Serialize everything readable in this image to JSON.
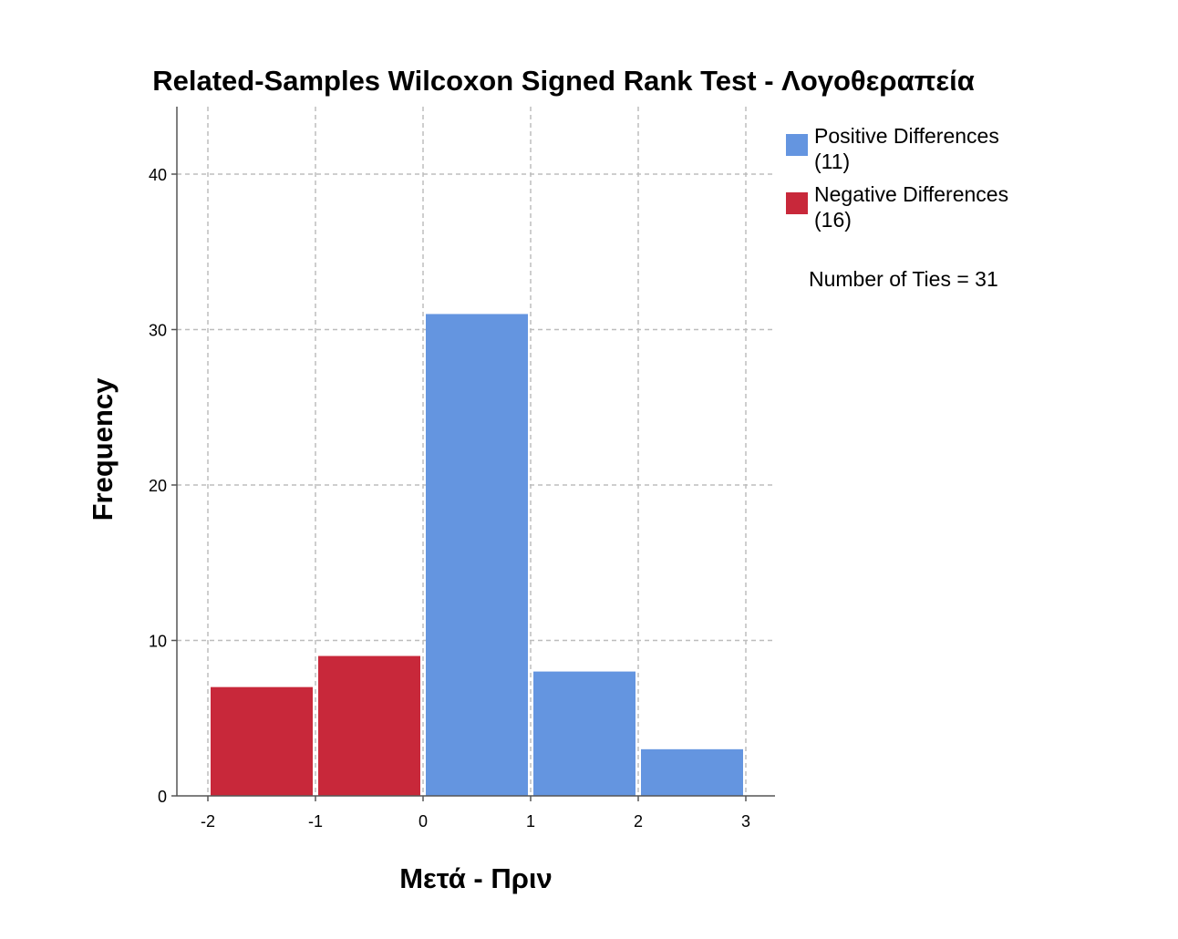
{
  "chart_data": {
    "type": "bar",
    "title": "Related-Samples Wilcoxon Signed Rank Test - Λογοθεραπεία",
    "xlabel": "Μετά - Πριν",
    "ylabel": "Frequency",
    "xlim": [
      -2,
      3
    ],
    "ylim": [
      0,
      44
    ],
    "x_ticks": [
      "-2",
      "-1",
      "0",
      "1",
      "2",
      "3"
    ],
    "y_ticks": [
      "0",
      "10",
      "20",
      "30",
      "40"
    ],
    "grid": true,
    "legend_position": "top-right",
    "bins": [
      {
        "from": -2,
        "to": -1,
        "value": 7,
        "series": "negative"
      },
      {
        "from": -1,
        "to": 0,
        "value": 9,
        "series": "negative"
      },
      {
        "from": 0,
        "to": 1,
        "value": 31,
        "series": "positive"
      },
      {
        "from": 1,
        "to": 2,
        "value": 8,
        "series": "positive"
      },
      {
        "from": 2,
        "to": 3,
        "value": 3,
        "series": "positive"
      }
    ],
    "series": [
      {
        "key": "positive",
        "name_line1": "Positive Differences",
        "name_line2": "(11)",
        "color": "#6495e0"
      },
      {
        "key": "negative",
        "name_line1": "Negative Differences",
        "name_line2": "(16)",
        "color": "#c8283a"
      }
    ],
    "annotation": "Number of Ties = 31"
  }
}
